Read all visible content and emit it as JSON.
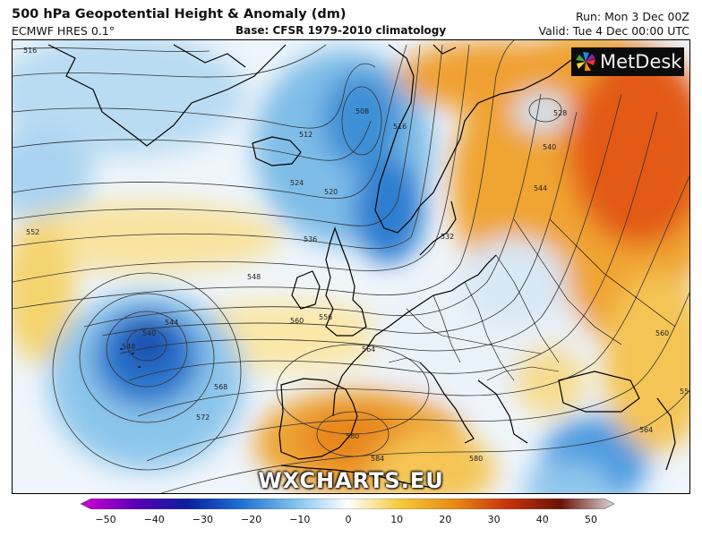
{
  "header": {
    "title": "500 hPa Geopotential Height & Anomaly (dm)",
    "model": "ECMWF HRES 0.1°",
    "base": "Base: CFSR 1979-2010 climatology",
    "run": "Run: Mon 3 Dec 00Z",
    "valid": "Valid: Tue 4 Dec 00:00 UTC"
  },
  "branding": {
    "logo_text": "MetDesk",
    "logo_icon": "metdesk-pinwheel-icon",
    "watermark": "WXCHARTS.EU"
  },
  "contour_labels": [
    "516",
    "508",
    "528",
    "512",
    "516",
    "540",
    "524",
    "520",
    "532",
    "544",
    "552",
    "536",
    "548",
    "540",
    "544",
    "548",
    "560",
    "556",
    "564",
    "568",
    "572",
    "580",
    "564",
    "560",
    "556",
    "584",
    "580"
  ],
  "colorbar": {
    "ticks": [
      "−50",
      "−40",
      "−30",
      "−20",
      "−10",
      "0",
      "10",
      "20",
      "30",
      "40",
      "50"
    ],
    "colors": [
      "#d400d4",
      "#5c00b8",
      "#0a1f9e",
      "#1f6fd1",
      "#7cc2ec",
      "#ffffff",
      "#f5c93a",
      "#e88a14",
      "#c8320c",
      "#6b1308",
      "#d9d9d9"
    ]
  }
}
